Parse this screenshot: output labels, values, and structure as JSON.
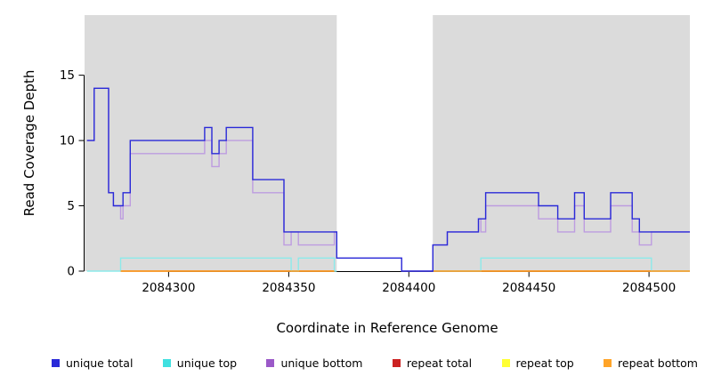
{
  "figure": {
    "background": "#ffffff"
  },
  "chart_data": {
    "type": "line",
    "style": "step-after",
    "title": "",
    "xlabel": "Coordinate in Reference Genome",
    "ylabel": "Read Coverage Depth",
    "xlim": [
      2084265,
      2084517
    ],
    "ylim": [
      0,
      19.6
    ],
    "xticks": [
      2084300,
      2084350,
      2084400,
      2084450,
      2084500
    ],
    "yticks": [
      0,
      5,
      10,
      15
    ],
    "grid": false,
    "legend_position": "bottom",
    "plot_bg": "#dbdbdb",
    "mask_region": {
      "x0": 2084370,
      "x1": 2084410,
      "color": "#ffffff"
    },
    "series": [
      {
        "name": "repeat top",
        "color": "#ffff33",
        "xend": 2084517,
        "steps": [
          [
            2084280,
            0
          ],
          [
            2084369,
            null
          ],
          [
            2084410,
            0
          ]
        ]
      },
      {
        "name": "repeat total",
        "color": "#cc2222",
        "xend": 2084517,
        "steps": [
          [
            2084280,
            0
          ],
          [
            2084369,
            null
          ],
          [
            2084410,
            0
          ]
        ]
      },
      {
        "name": "unique top",
        "color": "#40e0e0",
        "line_color": "#8ceaea",
        "xend": 2084517,
        "steps": [
          [
            2084266,
            0
          ],
          [
            2084280,
            1
          ],
          [
            2084351,
            0
          ],
          [
            2084354,
            1
          ],
          [
            2084369,
            0
          ],
          [
            2084370,
            null
          ],
          [
            2084410,
            0
          ],
          [
            2084430,
            1
          ],
          [
            2084501,
            0
          ]
        ]
      },
      {
        "name": "repeat bottom",
        "color": "#ffa428",
        "xend": 2084517,
        "steps": [
          [
            2084280,
            0
          ],
          [
            2084369,
            null
          ],
          [
            2084410,
            0
          ]
        ]
      },
      {
        "name": "unique bottom",
        "color": "#9b59c8",
        "line_color": "#bd9ce0",
        "xend": 2084517,
        "steps": [
          [
            2084266,
            10
          ],
          [
            2084269,
            14
          ],
          [
            2084275,
            6
          ],
          [
            2084277,
            5
          ],
          [
            2084280,
            4
          ],
          [
            2084281,
            5
          ],
          [
            2084284,
            9
          ],
          [
            2084315,
            10
          ],
          [
            2084318,
            8
          ],
          [
            2084321,
            9
          ],
          [
            2084324,
            10
          ],
          [
            2084335,
            6
          ],
          [
            2084348,
            2
          ],
          [
            2084351,
            3
          ],
          [
            2084354,
            2
          ],
          [
            2084369,
            3
          ],
          [
            2084370,
            1
          ],
          [
            2084397,
            0
          ],
          [
            2084410,
            2
          ],
          [
            2084416,
            3
          ],
          [
            2084429,
            4
          ],
          [
            2084430,
            3
          ],
          [
            2084432,
            5
          ],
          [
            2084454,
            4
          ],
          [
            2084462,
            3
          ],
          [
            2084469,
            5
          ],
          [
            2084473,
            3
          ],
          [
            2084484,
            5
          ],
          [
            2084493,
            3
          ],
          [
            2084496,
            2
          ],
          [
            2084501,
            3
          ]
        ]
      },
      {
        "name": "unique total",
        "color": "#2a2ad8",
        "xend": 2084517,
        "steps": [
          [
            2084266,
            10
          ],
          [
            2084269,
            14
          ],
          [
            2084275,
            6
          ],
          [
            2084277,
            5
          ],
          [
            2084281,
            6
          ],
          [
            2084284,
            10
          ],
          [
            2084315,
            11
          ],
          [
            2084318,
            9
          ],
          [
            2084321,
            10
          ],
          [
            2084324,
            11
          ],
          [
            2084335,
            7
          ],
          [
            2084348,
            3
          ],
          [
            2084370,
            1
          ],
          [
            2084397,
            0
          ],
          [
            2084410,
            2
          ],
          [
            2084416,
            3
          ],
          [
            2084429,
            4
          ],
          [
            2084432,
            6
          ],
          [
            2084454,
            5
          ],
          [
            2084462,
            4
          ],
          [
            2084469,
            6
          ],
          [
            2084473,
            4
          ],
          [
            2084484,
            6
          ],
          [
            2084493,
            4
          ],
          [
            2084496,
            3
          ]
        ]
      }
    ]
  },
  "legend": {
    "items": [
      {
        "label": "unique total",
        "color": "#2a2ad8"
      },
      {
        "label": "unique top",
        "color": "#40e0e0"
      },
      {
        "label": "unique bottom",
        "color": "#9b59c8"
      },
      {
        "label": "repeat total",
        "color": "#cc2222"
      },
      {
        "label": "repeat top",
        "color": "#ffff33"
      },
      {
        "label": "repeat bottom",
        "color": "#ffa428"
      }
    ]
  }
}
